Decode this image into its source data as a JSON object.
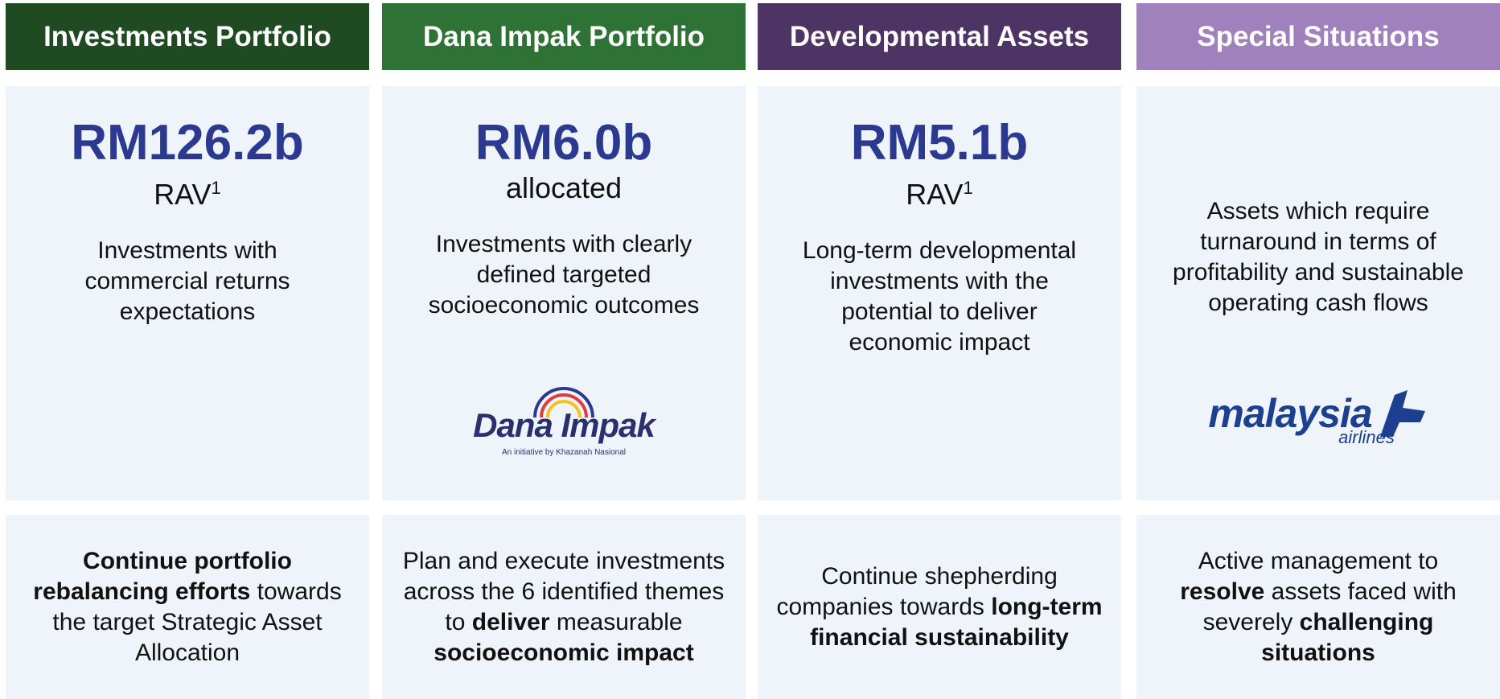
{
  "columns": [
    {
      "header": "Investments Portfolio",
      "amount": "RM126.2b",
      "amount_label": "RAV",
      "superscript": "1",
      "description": "Investments with commercial returns expectations",
      "action": [
        {
          "text": "Continue portfolio rebalancing efforts",
          "bold": true
        },
        {
          "text": " towards the target Strategic Asset Allocation",
          "bold": false
        }
      ]
    },
    {
      "header": "Dana Impak Portfolio",
      "amount": "RM6.0b",
      "amount_label": "allocated",
      "description": "Investments with clearly defined targeted socioeconomic outcomes",
      "logo": {
        "kind": "dana",
        "name": "Dana Impak",
        "tagline": "An initiative by Khazanah Nasional"
      },
      "action": [
        {
          "text": "Plan and execute investments across the 6 identified themes to ",
          "bold": false
        },
        {
          "text": "deliver",
          "bold": true
        },
        {
          "text": " measurable ",
          "bold": false
        },
        {
          "text": "socioeconomic impact",
          "bold": true
        }
      ]
    },
    {
      "header": "Developmental Assets",
      "amount": "RM5.1b",
      "amount_label": "RAV",
      "superscript": "1",
      "description": "Long-term developmental investments with the potential to deliver economic impact",
      "action": [
        {
          "text": "Continue shepherding companies towards ",
          "bold": false
        },
        {
          "text": "long-term financial sustainability",
          "bold": true
        }
      ]
    },
    {
      "header": "Special Situations",
      "description": "Assets which require turnaround in terms of profitability and sustainable operating cash flows",
      "logo": {
        "kind": "mas",
        "name": "malaysia",
        "tagline": "airlines"
      },
      "action": [
        {
          "text": "Active management to ",
          "bold": false
        },
        {
          "text": "resolve",
          "bold": true
        },
        {
          "text": " assets faced with severely ",
          "bold": false
        },
        {
          "text": "challenging situations",
          "bold": true
        }
      ]
    }
  ],
  "header_colors": [
    "#1f4a22",
    "#2f7236",
    "#4e3464",
    "#a081be"
  ]
}
